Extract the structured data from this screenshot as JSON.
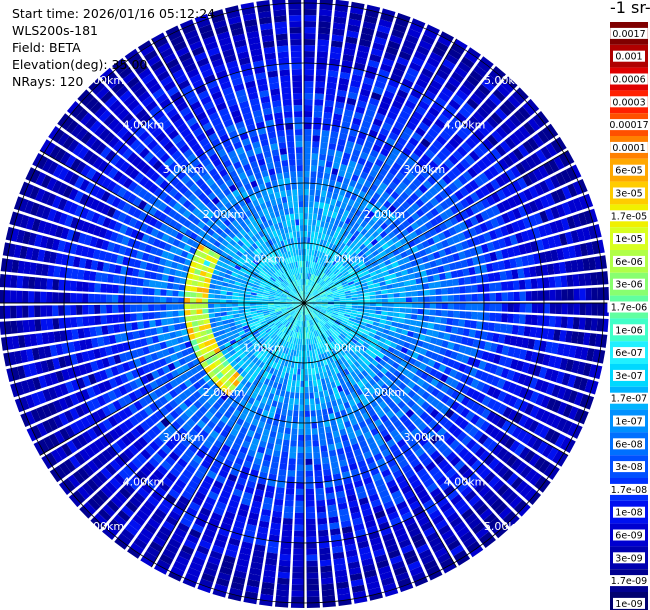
{
  "header": {
    "start_time": "Start time: 2026/01/16 05:12:24",
    "instrument": "WLS200s-181",
    "field": "Field: BETA",
    "elevation": "Elevation(deg): 35.00",
    "nrays": "NRays: 120"
  },
  "colorbar": {
    "title": "-1 sr-",
    "ticks": [
      "0.0017",
      "0.001",
      "0.0006",
      "0.0003",
      "0.00017",
      "0.0001",
      "6e-05",
      "3e-05",
      "1.7e-05",
      "1e-05",
      "6e-06",
      "3e-06",
      "1.7e-06",
      "1e-06",
      "6e-07",
      "3e-07",
      "1.7e-07",
      "1e-07",
      "6e-08",
      "3e-08",
      "1.7e-08",
      "1e-08",
      "6e-09",
      "3e-09",
      "1.7e-09",
      "1e-09"
    ],
    "colors": [
      "#800000",
      "#b00000",
      "#e00000",
      "#ff2000",
      "#ff5000",
      "#ff8000",
      "#ffa800",
      "#ffcc00",
      "#f0f000",
      "#d8ff20",
      "#b0ff48",
      "#88ff70",
      "#60ffa0",
      "#40ffc8",
      "#20f0ff",
      "#00d8ff",
      "#00b4ff",
      "#0090ff",
      "#0070ff",
      "#0050ff",
      "#0030ff",
      "#0010f0",
      "#0000d0",
      "#0000b0",
      "#000090",
      "#000070"
    ]
  },
  "chart_data": {
    "type": "heatmap",
    "plot_style": "polar PPI scan",
    "field": "BETA",
    "nrays": 120,
    "range_rings_km": [
      1,
      2,
      3,
      4,
      5
    ],
    "ring_labels": [
      "1.00km",
      "2.00km",
      "3.00km",
      "4.00km",
      "5.00km"
    ],
    "colorscale": "log, 1e-09 to 0.0017",
    "background_level_near_center": "1.7e-07",
    "background_level_far_range": "3e-08",
    "features": [
      {
        "description": "elevated band",
        "range_km_start": 1.6,
        "range_km_end": 2.0,
        "azimuth_deg_start": 220,
        "azimuth_deg_end": 300,
        "peak_value": "3e-05"
      }
    ]
  }
}
